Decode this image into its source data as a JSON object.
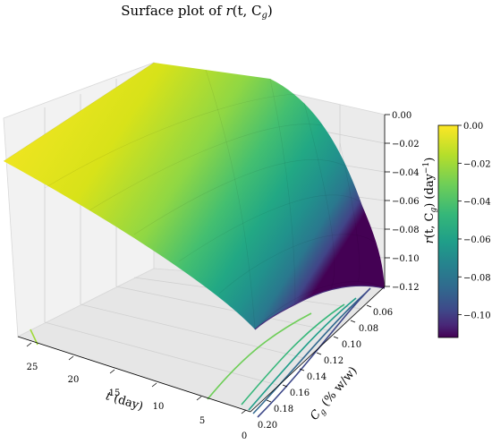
{
  "chart_data": {
    "type": "surface",
    "title": "Surface plot of r(t, C_g)",
    "title_display": {
      "prefix": "Surface plot of ",
      "fn": "r",
      "args": "(t, C",
      "sub": "g",
      "close": ")"
    },
    "xlabel": "t (day)",
    "xlabel_display": {
      "var": "t",
      "unit": " (day)"
    },
    "ylabel": "C_g (% w/w)",
    "ylabel_display": {
      "var": "C",
      "sub": "g",
      "unit": " (% w/w)"
    },
    "zlabel": "r(t, C_g) (day^-1)",
    "zlabel_display": {
      "fn": "r",
      "args": "(t, C",
      "sub": "g",
      "mid": ") (day",
      "sup": "−1",
      "close": ")"
    },
    "x_ticks": [
      "25",
      "20",
      "15",
      "10",
      "5",
      "0"
    ],
    "x_tick_values": [
      25,
      20,
      15,
      10,
      5,
      0
    ],
    "y_ticks": [
      "0.06",
      "0.08",
      "0.10",
      "0.12",
      "0.14",
      "0.16",
      "0.18",
      "0.20"
    ],
    "y_tick_values": [
      0.06,
      0.08,
      0.1,
      0.12,
      0.14,
      0.16,
      0.18,
      0.2
    ],
    "z_ticks": [
      "0.00",
      "−0.02",
      "−0.04",
      "−0.06",
      "−0.08",
      "−0.10",
      "−0.12"
    ],
    "z_tick_values": [
      0.0,
      -0.02,
      -0.04,
      -0.06,
      -0.08,
      -0.1,
      -0.12
    ],
    "xlim": [
      0,
      28
    ],
    "ylim": [
      0.05,
      0.2
    ],
    "zlim": [
      -0.125,
      0.0
    ],
    "colorbar": {
      "ticks": [
        "0.00",
        "−0.02",
        "−0.04",
        "−0.06",
        "−0.08",
        "−0.10"
      ],
      "tick_values": [
        0.0,
        -0.02,
        -0.04,
        -0.06,
        -0.08,
        -0.1
      ],
      "range": [
        -0.112,
        0.0
      ]
    },
    "colormap": [
      "#fde725",
      "#b5de2b",
      "#6ece58",
      "#35b779",
      "#1f9e89",
      "#26828e",
      "#31688e",
      "#3e4989",
      "#482878",
      "#440154"
    ],
    "surface_edge_samples": [
      {
        "t": 28,
        "Cg": 0.05,
        "r": 0.0
      },
      {
        "t": 28,
        "Cg": 0.2,
        "r": -0.002
      },
      {
        "t": 0.5,
        "Cg": 0.05,
        "r": -0.12
      },
      {
        "t": 0.5,
        "Cg": 0.2,
        "r": -0.08
      }
    ],
    "contour_levels": [
      -0.02,
      -0.04,
      -0.06,
      -0.08,
      -0.1
    ],
    "grid": true
  }
}
